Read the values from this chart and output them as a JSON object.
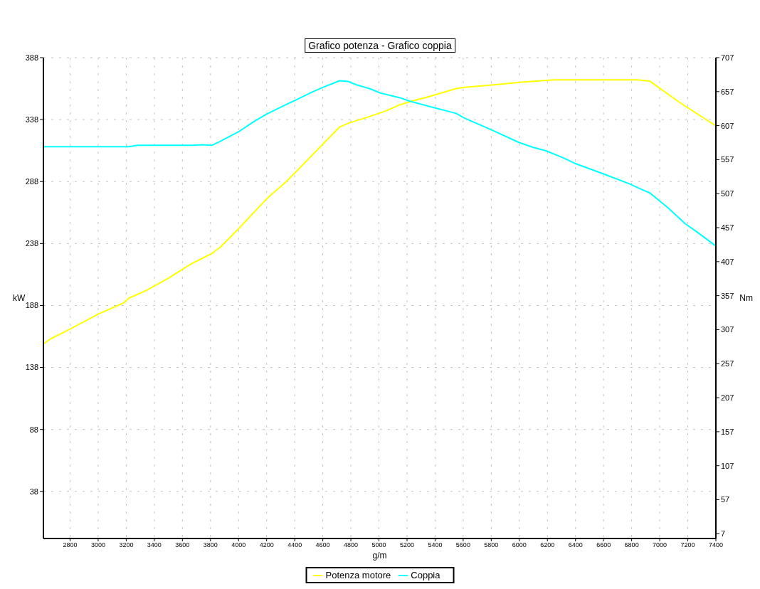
{
  "chart_data": {
    "type": "line",
    "title": "Grafico potenza - Grafico coppia",
    "xlabel": "g/m",
    "ylabel": "kW",
    "y2label": "Nm",
    "xlim": [
      2610,
      7400
    ],
    "xticks": [
      2800,
      3000,
      3200,
      3400,
      3600,
      3800,
      4000,
      4200,
      4400,
      4600,
      4800,
      5000,
      5200,
      5400,
      5600,
      5800,
      6000,
      6200,
      6400,
      6600,
      6800,
      7000,
      7200,
      7400
    ],
    "ylim": [
      0,
      388
    ],
    "yticks": [
      38,
      88,
      138,
      188,
      238,
      288,
      338,
      388
    ],
    "y2lim": [
      0,
      707
    ],
    "y2ticks": [
      7,
      57,
      107,
      157,
      207,
      257,
      307,
      357,
      407,
      457,
      507,
      557,
      607,
      657,
      707
    ],
    "grid": true,
    "legend": "bottom",
    "marker": "none",
    "line_style": "solid",
    "series": [
      {
        "name": "Potenza motore",
        "color": "#ffff00",
        "x": [
          2610,
          2660,
          2800,
          3000,
          3180,
          3220,
          3340,
          3500,
          3570,
          3670,
          3740,
          3810,
          3870,
          4000,
          4200,
          4340,
          4410,
          4590,
          4720,
          4780,
          4920,
          5050,
          5150,
          5270,
          5340,
          5550,
          5610,
          5820,
          6000,
          6240,
          6840,
          6930,
          7140,
          7400
        ],
        "values": [
          157,
          161,
          169,
          181,
          190,
          194,
          200,
          210,
          215,
          222,
          226,
          230,
          235,
          250,
          274,
          288,
          296,
          317,
          332,
          335,
          340,
          345,
          350,
          354,
          356,
          363,
          364,
          366,
          368,
          370,
          370,
          369,
          352,
          333
        ]
      },
      {
        "name": "Coppia",
        "color": "#00ffff",
        "axis": "y2",
        "x": [
          2610,
          3220,
          3280,
          3670,
          3740,
          3810,
          3870,
          4000,
          4110,
          4200,
          4340,
          4410,
          4530,
          4610,
          4660,
          4720,
          4780,
          4840,
          4940,
          5010,
          5150,
          5220,
          5400,
          5550,
          5610,
          5800,
          6000,
          6100,
          6190,
          6310,
          6390,
          6600,
          6790,
          6840,
          6930,
          7060,
          7180,
          7250,
          7400
        ],
        "values": [
          576,
          576,
          578,
          578,
          579,
          578,
          584,
          598,
          613,
          624,
          638,
          645,
          657,
          664,
          668,
          673,
          672,
          667,
          661,
          655,
          648,
          643,
          633,
          625,
          618,
          601,
          582,
          575,
          570,
          560,
          552,
          536,
          521,
          516,
          508,
          486,
          463,
          453,
          430
        ]
      }
    ]
  }
}
